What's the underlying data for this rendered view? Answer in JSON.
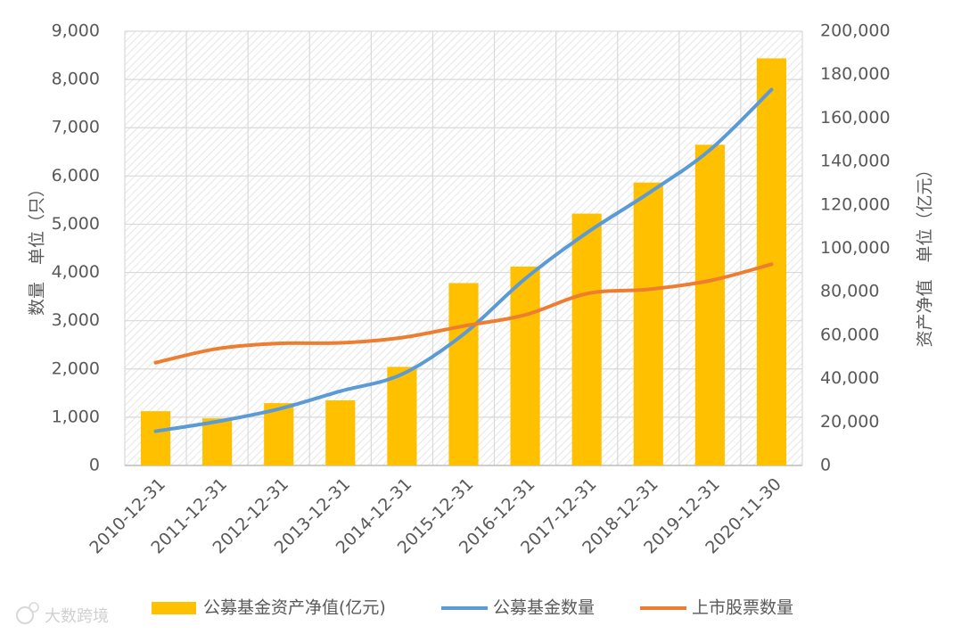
{
  "chart_data": {
    "type": "bar",
    "categories": [
      "2010-12-31",
      "2011-12-31",
      "2012-12-31",
      "2013-12-31",
      "2014-12-31",
      "2015-12-31",
      "2016-12-31",
      "2017-12-31",
      "2018-12-31",
      "2019-12-31",
      "2020-11-30"
    ],
    "series": [
      {
        "name": "公募基金资产净值(亿元)",
        "type": "bar",
        "axis": "right",
        "color": "#FFC000",
        "values": [
          25000,
          21700,
          28700,
          30000,
          45400,
          84000,
          91600,
          116000,
          130300,
          147700,
          187500
        ]
      },
      {
        "name": "公募基金数量",
        "type": "line",
        "axis": "left",
        "color": "#5B9BD5",
        "values": [
          710,
          910,
          1170,
          1540,
          1890,
          2720,
          3870,
          4820,
          5640,
          6540,
          7790
        ]
      },
      {
        "name": "上市股票数量",
        "type": "line",
        "axis": "left",
        "color": "#ED7D31",
        "values": [
          2130,
          2420,
          2530,
          2540,
          2650,
          2890,
          3120,
          3560,
          3650,
          3830,
          4170
        ]
      }
    ],
    "y_left": {
      "label": "数量　单位（只）",
      "range": [
        0,
        9000
      ],
      "ticks": [
        "0",
        "1,000",
        "2,000",
        "3,000",
        "4,000",
        "5,000",
        "6,000",
        "7,000",
        "8,000",
        "9,000"
      ]
    },
    "y_right": {
      "label": "资产净值　单位（亿元）",
      "range": [
        0,
        200000
      ],
      "ticks": [
        "0",
        "20,000",
        "40,000",
        "60,000",
        "80,000",
        "100,000",
        "120,000",
        "140,000",
        "160,000",
        "180,000",
        "200,000"
      ]
    },
    "grid": true,
    "legend_position": "bottom"
  },
  "watermark": {
    "text": "大数跨境",
    "icon": "weibo-icon"
  }
}
